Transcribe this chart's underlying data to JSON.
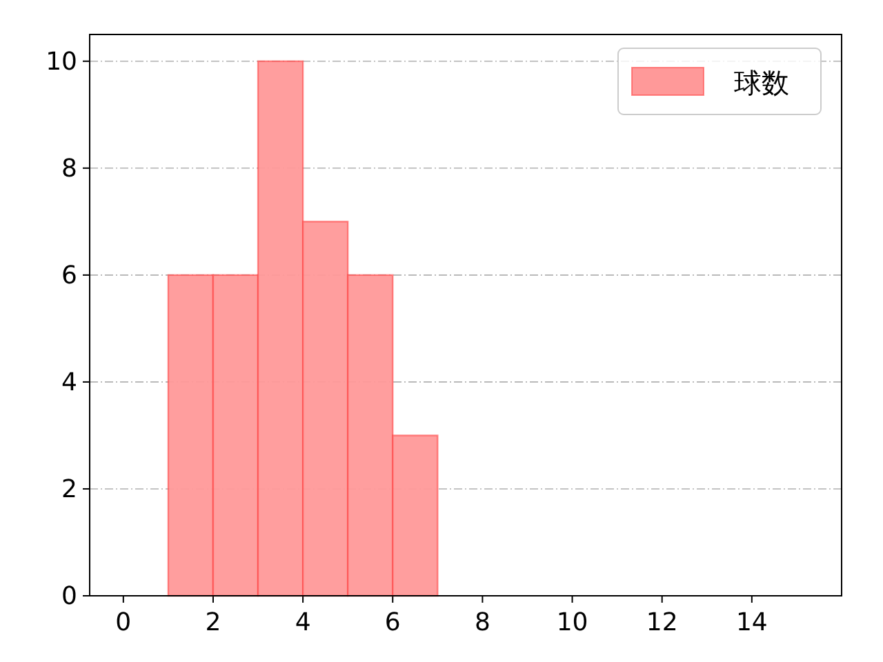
{
  "chart_data": {
    "type": "histogram",
    "bins": [
      1,
      2,
      3,
      4,
      5,
      6,
      7
    ],
    "series": [
      {
        "name": "球数",
        "color": "#ff9999",
        "values": [
          6,
          6,
          10,
          7,
          6,
          3
        ]
      }
    ],
    "xlim": [
      -0.75,
      16
    ],
    "xticks": [
      0,
      2,
      4,
      6,
      8,
      10,
      12,
      14
    ],
    "ylim": [
      0,
      10.5
    ],
    "yticks": [
      0,
      2,
      4,
      6,
      8,
      10
    ],
    "grid": "y",
    "legend": "top right"
  }
}
